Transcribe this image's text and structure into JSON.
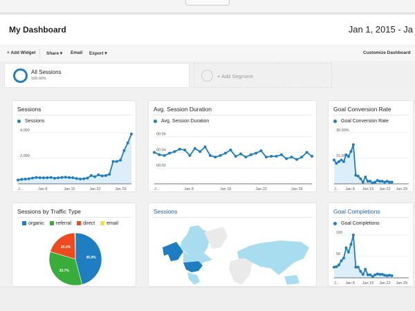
{
  "header": {
    "title": "My Dashboard",
    "date_range": "Jan 1, 2015 - Ja"
  },
  "toolbar": {
    "add_widget": "+ Add Widget",
    "share": "Share ▾",
    "email": "Email",
    "export": "Export ▾",
    "customize": "Customize Dashboard"
  },
  "segments": {
    "active_name": "All Sessions",
    "active_pct": "100.00%",
    "add": "+ Add Segment"
  },
  "colors": {
    "accent": "#1f7dc1",
    "fill": "#dceefa",
    "organic": "#1f7dc1",
    "referral": "#3aac3a",
    "direct": "#ee4a1f",
    "email": "#f0e04a"
  },
  "x_ticks": [
    "J...",
    "Jan 8",
    "Jan 15",
    "Jan 22",
    "Jan 29"
  ],
  "chart_data": [
    {
      "type": "area",
      "title": "Sessions",
      "series": [
        {
          "name": "Sessions",
          "values": [
            300,
            350,
            370,
            400,
            450,
            500,
            480,
            470,
            480,
            500,
            440,
            470,
            500,
            520,
            490,
            480,
            420,
            380,
            400,
            450,
            650,
            560,
            700,
            620,
            650,
            750,
            1750,
            1750,
            1850,
            2600,
            3200,
            3900
          ]
        }
      ],
      "yticks": [
        "2,000",
        "4,000"
      ],
      "ylim": [
        0,
        4000
      ]
    },
    {
      "type": "line",
      "title": "Avg. Session Duration",
      "series": [
        {
          "name": "Avg. Session Duration",
          "values": [
            4.0,
            3.7,
            3.6,
            3.9,
            4.1,
            4.4,
            4.3,
            3.6,
            4.5,
            4.1,
            4.7,
            3.6,
            3.4,
            3.6,
            3.9,
            4.3,
            3.5,
            3.8,
            3.4,
            3.7,
            3.9,
            4.2,
            3.4,
            3.5,
            3.5,
            3.7,
            3.2,
            3.4,
            3.1,
            3.4,
            4.0,
            3.5
          ]
        }
      ],
      "yticks": [
        "00:02",
        "00:04",
        "00:06"
      ],
      "ylim": [
        0,
        6.5
      ]
    },
    {
      "type": "area",
      "title": "Goal Conversion Rate",
      "series": [
        {
          "name": "Goal Conversion Rate",
          "values": [
            14,
            12,
            13,
            14,
            13,
            17,
            16,
            19,
            23,
            5,
            4.5,
            3,
            1,
            4,
            1.5,
            1.5,
            0.5,
            1,
            2,
            1.5,
            1.5,
            1,
            1.5,
            1,
            1
          ]
        }
      ],
      "yticks": [
        "15.00%",
        "30.00%"
      ],
      "ylim": [
        0,
        30
      ]
    },
    {
      "type": "pie",
      "title": "Sessions by Traffic Type",
      "categories": [
        "organic",
        "referral",
        "direct",
        "email"
      ],
      "values": [
        45.9,
        33.7,
        20.0,
        0.4
      ],
      "labels": [
        "45.9%",
        "33.7%",
        "20.0%",
        ""
      ]
    },
    {
      "type": "area",
      "title": "Goal Completions",
      "series": [
        {
          "name": "Goal Completions",
          "values": [
            25,
            26,
            30,
            40,
            46,
            70,
            60,
            78,
            100,
            25,
            25,
            15,
            8,
            20,
            7,
            7,
            3,
            7,
            9,
            8,
            8,
            6,
            5,
            6,
            5
          ]
        }
      ],
      "yticks": [
        "50",
        "100"
      ],
      "ylim": [
        0,
        100
      ]
    }
  ],
  "map": {
    "title": "Sessions"
  }
}
